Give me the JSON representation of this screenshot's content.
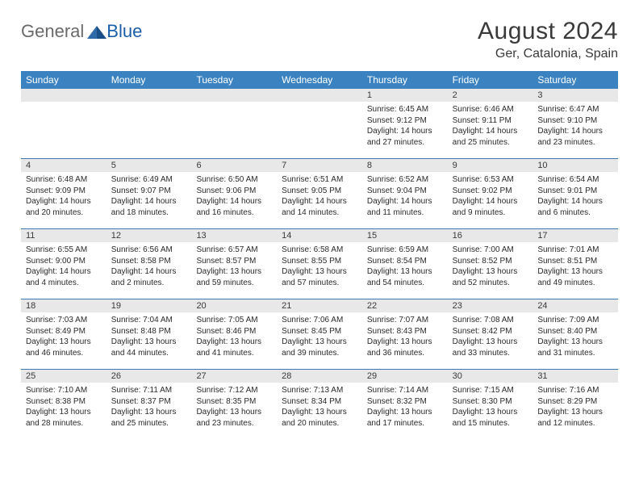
{
  "brand": {
    "text1": "General",
    "text2": "Blue"
  },
  "title": "August 2024",
  "location": "Ger, Catalonia, Spain",
  "colors": {
    "header_bar": "#3b83c0",
    "row_divider": "#3b7ab3",
    "daynum_bg": "#e8e8e8",
    "text": "#2a2a2a",
    "logo_gray": "#6a6a6a",
    "logo_blue": "#1a5fa8"
  },
  "day_names": [
    "Sunday",
    "Monday",
    "Tuesday",
    "Wednesday",
    "Thursday",
    "Friday",
    "Saturday"
  ],
  "weeks": [
    [
      {
        "num": "",
        "sunrise": "",
        "sunset": "",
        "daylight": ""
      },
      {
        "num": "",
        "sunrise": "",
        "sunset": "",
        "daylight": ""
      },
      {
        "num": "",
        "sunrise": "",
        "sunset": "",
        "daylight": ""
      },
      {
        "num": "",
        "sunrise": "",
        "sunset": "",
        "daylight": ""
      },
      {
        "num": "1",
        "sunrise": "Sunrise: 6:45 AM",
        "sunset": "Sunset: 9:12 PM",
        "daylight": "Daylight: 14 hours and 27 minutes."
      },
      {
        "num": "2",
        "sunrise": "Sunrise: 6:46 AM",
        "sunset": "Sunset: 9:11 PM",
        "daylight": "Daylight: 14 hours and 25 minutes."
      },
      {
        "num": "3",
        "sunrise": "Sunrise: 6:47 AM",
        "sunset": "Sunset: 9:10 PM",
        "daylight": "Daylight: 14 hours and 23 minutes."
      }
    ],
    [
      {
        "num": "4",
        "sunrise": "Sunrise: 6:48 AM",
        "sunset": "Sunset: 9:09 PM",
        "daylight": "Daylight: 14 hours and 20 minutes."
      },
      {
        "num": "5",
        "sunrise": "Sunrise: 6:49 AM",
        "sunset": "Sunset: 9:07 PM",
        "daylight": "Daylight: 14 hours and 18 minutes."
      },
      {
        "num": "6",
        "sunrise": "Sunrise: 6:50 AM",
        "sunset": "Sunset: 9:06 PM",
        "daylight": "Daylight: 14 hours and 16 minutes."
      },
      {
        "num": "7",
        "sunrise": "Sunrise: 6:51 AM",
        "sunset": "Sunset: 9:05 PM",
        "daylight": "Daylight: 14 hours and 14 minutes."
      },
      {
        "num": "8",
        "sunrise": "Sunrise: 6:52 AM",
        "sunset": "Sunset: 9:04 PM",
        "daylight": "Daylight: 14 hours and 11 minutes."
      },
      {
        "num": "9",
        "sunrise": "Sunrise: 6:53 AM",
        "sunset": "Sunset: 9:02 PM",
        "daylight": "Daylight: 14 hours and 9 minutes."
      },
      {
        "num": "10",
        "sunrise": "Sunrise: 6:54 AM",
        "sunset": "Sunset: 9:01 PM",
        "daylight": "Daylight: 14 hours and 6 minutes."
      }
    ],
    [
      {
        "num": "11",
        "sunrise": "Sunrise: 6:55 AM",
        "sunset": "Sunset: 9:00 PM",
        "daylight": "Daylight: 14 hours and 4 minutes."
      },
      {
        "num": "12",
        "sunrise": "Sunrise: 6:56 AM",
        "sunset": "Sunset: 8:58 PM",
        "daylight": "Daylight: 14 hours and 2 minutes."
      },
      {
        "num": "13",
        "sunrise": "Sunrise: 6:57 AM",
        "sunset": "Sunset: 8:57 PM",
        "daylight": "Daylight: 13 hours and 59 minutes."
      },
      {
        "num": "14",
        "sunrise": "Sunrise: 6:58 AM",
        "sunset": "Sunset: 8:55 PM",
        "daylight": "Daylight: 13 hours and 57 minutes."
      },
      {
        "num": "15",
        "sunrise": "Sunrise: 6:59 AM",
        "sunset": "Sunset: 8:54 PM",
        "daylight": "Daylight: 13 hours and 54 minutes."
      },
      {
        "num": "16",
        "sunrise": "Sunrise: 7:00 AM",
        "sunset": "Sunset: 8:52 PM",
        "daylight": "Daylight: 13 hours and 52 minutes."
      },
      {
        "num": "17",
        "sunrise": "Sunrise: 7:01 AM",
        "sunset": "Sunset: 8:51 PM",
        "daylight": "Daylight: 13 hours and 49 minutes."
      }
    ],
    [
      {
        "num": "18",
        "sunrise": "Sunrise: 7:03 AM",
        "sunset": "Sunset: 8:49 PM",
        "daylight": "Daylight: 13 hours and 46 minutes."
      },
      {
        "num": "19",
        "sunrise": "Sunrise: 7:04 AM",
        "sunset": "Sunset: 8:48 PM",
        "daylight": "Daylight: 13 hours and 44 minutes."
      },
      {
        "num": "20",
        "sunrise": "Sunrise: 7:05 AM",
        "sunset": "Sunset: 8:46 PM",
        "daylight": "Daylight: 13 hours and 41 minutes."
      },
      {
        "num": "21",
        "sunrise": "Sunrise: 7:06 AM",
        "sunset": "Sunset: 8:45 PM",
        "daylight": "Daylight: 13 hours and 39 minutes."
      },
      {
        "num": "22",
        "sunrise": "Sunrise: 7:07 AM",
        "sunset": "Sunset: 8:43 PM",
        "daylight": "Daylight: 13 hours and 36 minutes."
      },
      {
        "num": "23",
        "sunrise": "Sunrise: 7:08 AM",
        "sunset": "Sunset: 8:42 PM",
        "daylight": "Daylight: 13 hours and 33 minutes."
      },
      {
        "num": "24",
        "sunrise": "Sunrise: 7:09 AM",
        "sunset": "Sunset: 8:40 PM",
        "daylight": "Daylight: 13 hours and 31 minutes."
      }
    ],
    [
      {
        "num": "25",
        "sunrise": "Sunrise: 7:10 AM",
        "sunset": "Sunset: 8:38 PM",
        "daylight": "Daylight: 13 hours and 28 minutes."
      },
      {
        "num": "26",
        "sunrise": "Sunrise: 7:11 AM",
        "sunset": "Sunset: 8:37 PM",
        "daylight": "Daylight: 13 hours and 25 minutes."
      },
      {
        "num": "27",
        "sunrise": "Sunrise: 7:12 AM",
        "sunset": "Sunset: 8:35 PM",
        "daylight": "Daylight: 13 hours and 23 minutes."
      },
      {
        "num": "28",
        "sunrise": "Sunrise: 7:13 AM",
        "sunset": "Sunset: 8:34 PM",
        "daylight": "Daylight: 13 hours and 20 minutes."
      },
      {
        "num": "29",
        "sunrise": "Sunrise: 7:14 AM",
        "sunset": "Sunset: 8:32 PM",
        "daylight": "Daylight: 13 hours and 17 minutes."
      },
      {
        "num": "30",
        "sunrise": "Sunrise: 7:15 AM",
        "sunset": "Sunset: 8:30 PM",
        "daylight": "Daylight: 13 hours and 15 minutes."
      },
      {
        "num": "31",
        "sunrise": "Sunrise: 7:16 AM",
        "sunset": "Sunset: 8:29 PM",
        "daylight": "Daylight: 13 hours and 12 minutes."
      }
    ]
  ]
}
